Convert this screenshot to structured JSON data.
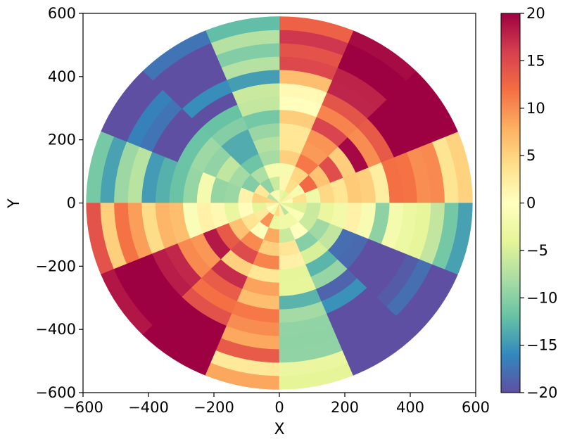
{
  "chart_data": {
    "type": "heatmap",
    "subtype": "polar-binned scatter",
    "title": "",
    "xlabel": "X",
    "ylabel": "Y",
    "xlim": [
      -600,
      600
    ],
    "ylim": [
      -600,
      600
    ],
    "x_ticks": [
      -600,
      -400,
      -200,
      0,
      200,
      400,
      600
    ],
    "y_ticks": [
      -600,
      -400,
      -200,
      0,
      200,
      400,
      600
    ],
    "x_tick_labels": [
      "−600",
      "−400",
      "−200",
      "0",
      "200",
      "400",
      "600"
    ],
    "y_tick_labels": [
      "−600",
      "−400",
      "−200",
      "0",
      "200",
      "400",
      "600"
    ],
    "colorbar": {
      "colormap": "Spectral_r",
      "range": [
        -20,
        20
      ],
      "ticks": [
        20,
        15,
        10,
        5,
        0,
        -5,
        -10,
        -15,
        -20
      ],
      "tick_labels": [
        "20",
        "15",
        "10",
        "5",
        "0",
        "−5",
        "−10",
        "−15",
        "−20"
      ],
      "colors": [
        "#5e4fa2",
        "#3288bd",
        "#66c2a5",
        "#abdda4",
        "#e6f598",
        "#ffffbf",
        "#fee08b",
        "#fdae61",
        "#f46d43",
        "#d53e4f",
        "#9e0142"
      ]
    },
    "data_extent": {
      "shape": "disk of polar bins centred on origin",
      "approx_radius": 590,
      "angular_sectors": 16,
      "radial_rings": 14
    },
    "value_pattern": {
      "description": "Azimuthal pattern: strongly positive (red) toward upper-right (~45°) and lower-left (~225°); strongly negative (purple/blue) toward upper-left (~135°) and lower-right (~315°); near zero near the centre and along the axes; magnitude grows with radius.",
      "positive_direction_deg": 45,
      "negative_direction_deg": 135,
      "max_abs_value": 20
    }
  }
}
